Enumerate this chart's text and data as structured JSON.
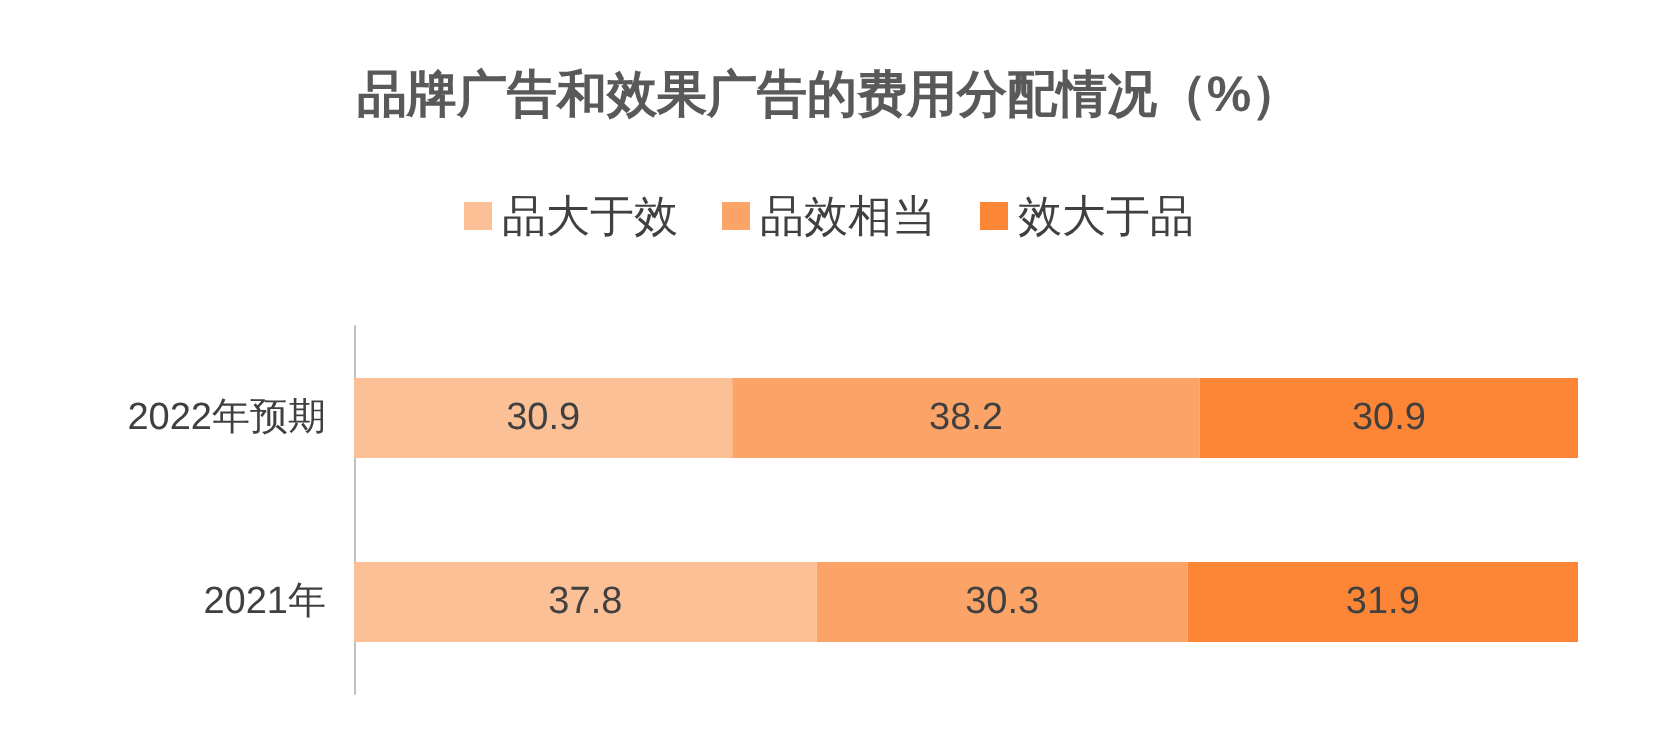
{
  "chart_data": {
    "type": "bar",
    "title": "品牌广告和效果广告的费用分配情况（%）",
    "orientation": "horizontal",
    "stacked": true,
    "data_labels": true,
    "legend": "top",
    "grid": false,
    "categories": [
      "2022年预期",
      "2021年"
    ],
    "series": [
      {
        "name": "品大于效",
        "color": "#fcc096",
        "values": [
          30.9,
          37.8
        ]
      },
      {
        "name": "品效相当",
        "color": "#fca467",
        "values": [
          38.2,
          30.3
        ]
      },
      {
        "name": "效大于品",
        "color": "#fd8636",
        "values": [
          30.9,
          31.9
        ]
      }
    ]
  }
}
